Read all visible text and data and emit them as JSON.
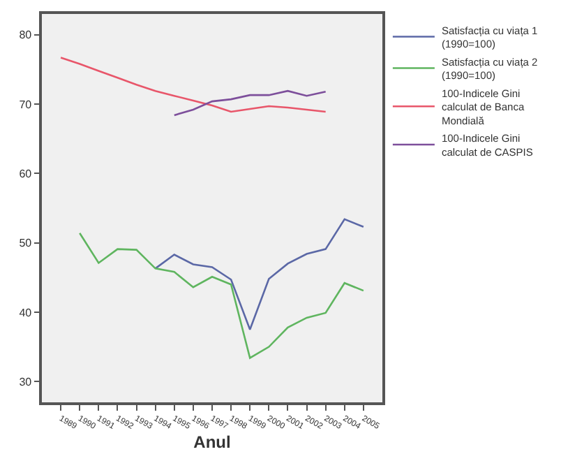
{
  "chart_data": {
    "type": "line",
    "xlabel": "Anul",
    "categories": [
      "1989",
      "1990",
      "1991",
      "1992",
      "1993",
      "1994",
      "1995",
      "1996",
      "1997",
      "1998",
      "1999",
      "2000",
      "2001",
      "2002",
      "2003",
      "2004",
      "2005"
    ],
    "series": [
      {
        "name": "Satisfacția cu viața 1 (1990=100)",
        "color": "#5b68a6",
        "values": [
          null,
          null,
          null,
          null,
          null,
          46.3,
          48.3,
          46.9,
          46.5,
          44.7,
          37.5,
          44.8,
          47.0,
          48.4,
          49.1,
          53.4,
          52.3
        ]
      },
      {
        "name": "Satisfacția cu viața 2 (1990=100)",
        "color": "#5fb55f",
        "values": [
          null,
          51.4,
          47.1,
          49.1,
          49.0,
          46.3,
          45.8,
          43.6,
          45.1,
          44.0,
          33.4,
          35.0,
          37.8,
          39.2,
          39.9,
          44.2,
          43.1
        ]
      },
      {
        "name": "100-Indicele Gini calculat de Banca Mondială",
        "color": "#e8566a",
        "values": [
          76.7,
          75.8,
          74.8,
          73.8,
          72.8,
          71.9,
          71.2,
          70.5,
          69.8,
          68.9,
          69.3,
          69.7,
          69.5,
          69.2,
          68.9,
          null,
          null
        ]
      },
      {
        "name": "100-Indicele Gini calculat de CASPIS",
        "color": "#7d4f9b",
        "values": [
          null,
          null,
          null,
          null,
          null,
          null,
          68.4,
          69.2,
          70.4,
          70.7,
          71.3,
          71.3,
          71.9,
          71.2,
          71.8,
          null,
          null
        ]
      }
    ],
    "ylim": [
      27,
      83
    ],
    "yticks": [
      30,
      40,
      50,
      60,
      70,
      80
    ],
    "grid": false,
    "legend": "right",
    "marker": "none",
    "line_style": "solid"
  }
}
